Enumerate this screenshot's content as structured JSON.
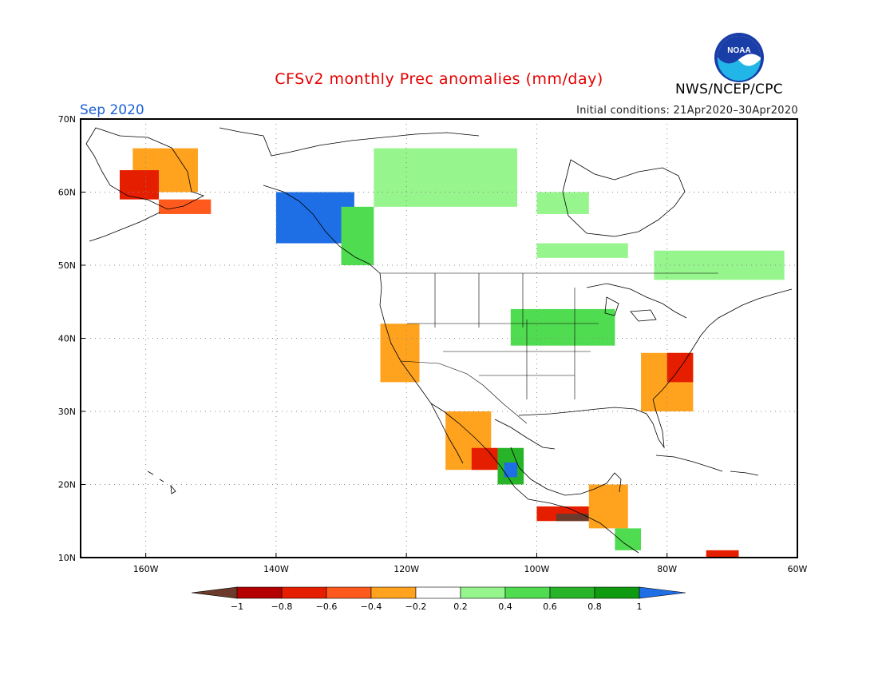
{
  "title": "CFSv2 monthly Prec anomalies (mm/day)",
  "agency": "NWS/NCEP/CPC",
  "logo_text": "NOAA",
  "month": "Sep 2020",
  "initial_conditions": "Initial conditions: 21Apr2020–30Apr2020",
  "colors": {
    "title": "#e60000",
    "month": "#1a5fd6",
    "bins": [
      "#6b3a2a",
      "#b40000",
      "#e61e00",
      "#ff5a1e",
      "#ffa21e",
      "#ffffff",
      "#96f58c",
      "#50dc50",
      "#28b428",
      "#0f9b0f",
      "#1e6ee6"
    ]
  },
  "chart_data": {
    "type": "heatmap",
    "variable": "Prec anomalies",
    "units": "mm/day",
    "lon_range": [
      -170,
      -60
    ],
    "lat_range": [
      10,
      70
    ],
    "lat_labels": [
      "70N",
      "60N",
      "50N",
      "40N",
      "30N",
      "20N",
      "10N"
    ],
    "lon_labels": [
      "160W",
      "140W",
      "120W",
      "100W",
      "80W",
      "60W"
    ],
    "colorbar_labels": [
      "−1",
      "−0.8",
      "−0.6",
      "−0.4",
      "−0.2",
      "0.2",
      "0.4",
      "0.6",
      "0.8",
      "1"
    ],
    "regions": [
      {
        "bin": 4,
        "lon": [
          -162,
          -152
        ],
        "lat": [
          60,
          66
        ]
      },
      {
        "bin": 2,
        "lon": [
          -164,
          -158
        ],
        "lat": [
          59,
          63
        ]
      },
      {
        "bin": 3,
        "lon": [
          -158,
          -150
        ],
        "lat": [
          57,
          59
        ]
      },
      {
        "bin": 10,
        "lon": [
          -140,
          -128
        ],
        "lat": [
          53,
          60
        ]
      },
      {
        "bin": 7,
        "lon": [
          -130,
          -125
        ],
        "lat": [
          50,
          58
        ]
      },
      {
        "bin": 6,
        "lon": [
          -125,
          -103
        ],
        "lat": [
          58,
          66
        ]
      },
      {
        "bin": 6,
        "lon": [
          -100,
          -92
        ],
        "lat": [
          57,
          60
        ]
      },
      {
        "bin": 6,
        "lon": [
          -100,
          -86
        ],
        "lat": [
          51,
          53
        ]
      },
      {
        "bin": 6,
        "lon": [
          -82,
          -62
        ],
        "lat": [
          48,
          52
        ]
      },
      {
        "bin": 7,
        "lon": [
          -104,
          -88
        ],
        "lat": [
          39,
          44
        ]
      },
      {
        "bin": 4,
        "lon": [
          -124,
          -118
        ],
        "lat": [
          34,
          42
        ]
      },
      {
        "bin": 4,
        "lon": [
          -84,
          -76
        ],
        "lat": [
          30,
          38
        ]
      },
      {
        "bin": 2,
        "lon": [
          -80,
          -76
        ],
        "lat": [
          34,
          38
        ]
      },
      {
        "bin": 4,
        "lon": [
          -114,
          -107
        ],
        "lat": [
          22,
          30
        ]
      },
      {
        "bin": 2,
        "lon": [
          -110,
          -106
        ],
        "lat": [
          22,
          25
        ]
      },
      {
        "bin": 8,
        "lon": [
          -106,
          -102
        ],
        "lat": [
          20,
          25
        ]
      },
      {
        "bin": 10,
        "lon": [
          -105,
          -103
        ],
        "lat": [
          21,
          23
        ]
      },
      {
        "bin": 2,
        "lon": [
          -100,
          -92
        ],
        "lat": [
          15,
          17
        ]
      },
      {
        "bin": 0,
        "lon": [
          -97,
          -92
        ],
        "lat": [
          15,
          16
        ]
      },
      {
        "bin": 4,
        "lon": [
          -92,
          -86
        ],
        "lat": [
          14,
          20
        ]
      },
      {
        "bin": 7,
        "lon": [
          -88,
          -84
        ],
        "lat": [
          11,
          14
        ]
      },
      {
        "bin": 2,
        "lon": [
          -74,
          -69
        ],
        "lat": [
          10,
          11
        ]
      }
    ]
  }
}
